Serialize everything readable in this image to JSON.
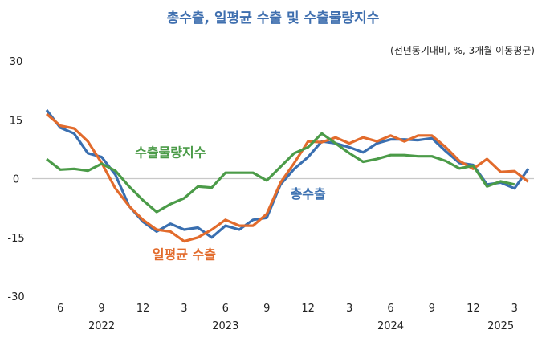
{
  "chart_data": {
    "type": "line",
    "title": "총수출, 일평균 수출 및 수출물량지수",
    "note": "(전년동기대비, %, 3개월 이동평균)",
    "ylim": [
      -30,
      30
    ],
    "yticks": [
      "30",
      "15",
      "0",
      "-15",
      "-30"
    ],
    "ytick_values": [
      30,
      15,
      0,
      -15,
      -30
    ],
    "x": [
      "2022-05",
      "2022-06",
      "2022-07",
      "2022-08",
      "2022-09",
      "2022-10",
      "2022-11",
      "2022-12",
      "2023-01",
      "2023-02",
      "2023-03",
      "2023-04",
      "2023-05",
      "2023-06",
      "2023-07",
      "2023-08",
      "2023-09",
      "2023-10",
      "2023-11",
      "2023-12",
      "2024-01",
      "2024-02",
      "2024-03",
      "2024-04",
      "2024-05",
      "2024-06",
      "2024-07",
      "2024-08",
      "2024-09",
      "2024-10",
      "2024-11",
      "2024-12",
      "2025-01",
      "2025-02",
      "2025-03",
      "2025-04"
    ],
    "xticks": [
      {
        "label": "6",
        "month": "2022-06"
      },
      {
        "label": "9",
        "month": "2022-09"
      },
      {
        "label": "12",
        "month": "2022-12"
      },
      {
        "label": "3",
        "month": "2023-03"
      },
      {
        "label": "6",
        "month": "2023-06"
      },
      {
        "label": "9",
        "month": "2023-09"
      },
      {
        "label": "12",
        "month": "2023-12"
      },
      {
        "label": "3",
        "month": "2024-03"
      },
      {
        "label": "6",
        "month": "2024-06"
      },
      {
        "label": "9",
        "month": "2024-09"
      },
      {
        "label": "12",
        "month": "2024-12"
      },
      {
        "label": "3",
        "month": "2025-03"
      }
    ],
    "years": [
      {
        "label": "2022",
        "month": "2022-09"
      },
      {
        "label": "2023",
        "month": "2023-06"
      },
      {
        "label": "2024",
        "month": "2024-06"
      },
      {
        "label": "2025",
        "month": "2025-02"
      }
    ],
    "grid": false,
    "zero_line": true,
    "series": [
      {
        "name": "총수출",
        "color": "#3a6fb0",
        "label_at": [
          "2023-12",
          -5
        ],
        "values": [
          17.5,
          13,
          11.5,
          6.5,
          5.5,
          1,
          -7,
          -11,
          -13.5,
          -11.5,
          -13,
          -12.5,
          -15,
          -12,
          -13,
          -10.5,
          -10,
          -1.5,
          2.5,
          5.5,
          9.5,
          9,
          8,
          6.7,
          9,
          10,
          10,
          9.8,
          10.3,
          7,
          4,
          3.5,
          -1.5,
          -1,
          -2.5,
          2.5
        ]
      },
      {
        "name": "일평균 수출",
        "color": "#e26b2c",
        "label_at": [
          "2023-03",
          -20.5
        ],
        "values": [
          16.5,
          13.5,
          12.8,
          9.5,
          4,
          -2.5,
          -7,
          -10.5,
          -13,
          -13.5,
          -16,
          -15,
          -13,
          -10.5,
          -12,
          -12,
          -9,
          -1,
          4,
          9.5,
          9.3,
          10.5,
          9,
          10.5,
          9.5,
          11,
          9.5,
          11,
          11,
          8,
          4.5,
          2.5,
          5,
          1.7,
          1.9,
          -0.8
        ]
      },
      {
        "name": "수출물량지수",
        "color": "#4b9b48",
        "label_at": [
          "2023-02",
          5.5
        ],
        "values": [
          5,
          2.3,
          2.5,
          2,
          3.8,
          2,
          -2,
          -5.5,
          -8.5,
          -6.5,
          -5,
          -2,
          -2.3,
          1.5,
          1.5,
          1.5,
          -0.5,
          3,
          6.5,
          8,
          11.5,
          9,
          6.5,
          4.3,
          5,
          6,
          6,
          5.7,
          5.7,
          4.5,
          2.6,
          3.3,
          -2,
          -0.7,
          -1.5,
          null
        ]
      }
    ]
  }
}
